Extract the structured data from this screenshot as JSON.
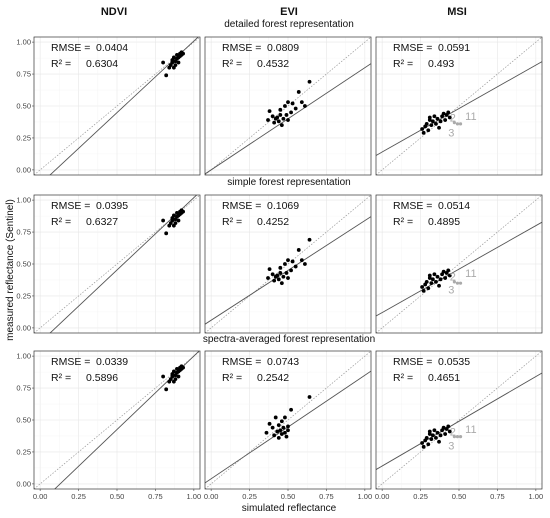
{
  "chart_data": {
    "type": "scatter",
    "columns": [
      "NDVI",
      "EVI",
      "MSI"
    ],
    "rows": [
      "detailed forest representation",
      "simple forest representation",
      "spectra-averaged forest representation"
    ],
    "xlabel": "simulated reflectance",
    "ylabel": "measured reflectance (Sentinel)",
    "xlim": [
      0,
      1
    ],
    "ylim": [
      0,
      1
    ],
    "x_ticks": [
      "0.00",
      "0.25",
      "0.50",
      "0.75",
      "1.00"
    ],
    "y_ticks": [
      "0.00",
      "0.25",
      "0.50",
      "0.75",
      "1.00"
    ],
    "grid": true,
    "reference_line": "1:1 dotted",
    "panels": [
      {
        "row": 0,
        "col": 0,
        "rmse_label": "RMSE =",
        "rmse": "0.0404",
        "r2_label": "R² =",
        "r2": "0.6304",
        "fit": [
          [
            0.1,
            0.0
          ],
          [
            0.93,
            0.93
          ]
        ],
        "points": [
          [
            0.8,
            0.84
          ],
          [
            0.82,
            0.74
          ],
          [
            0.84,
            0.8
          ],
          [
            0.85,
            0.82
          ],
          [
            0.86,
            0.84
          ],
          [
            0.86,
            0.86
          ],
          [
            0.87,
            0.8
          ],
          [
            0.87,
            0.88
          ],
          [
            0.88,
            0.82
          ],
          [
            0.88,
            0.85
          ],
          [
            0.89,
            0.87
          ],
          [
            0.89,
            0.9
          ],
          [
            0.9,
            0.84
          ],
          [
            0.9,
            0.88
          ],
          [
            0.91,
            0.89
          ],
          [
            0.91,
            0.91
          ],
          [
            0.92,
            0.9
          ],
          [
            0.92,
            0.92
          ],
          [
            0.93,
            0.91
          ]
        ]
      },
      {
        "row": 0,
        "col": 1,
        "rmse_label": "RMSE =",
        "rmse": "0.0809",
        "r2_label": "R² =",
        "r2": "0.4532",
        "fit": [
          [
            0.0,
            0.0
          ],
          [
            1.0,
            0.8
          ]
        ],
        "points": [
          [
            0.37,
            0.39
          ],
          [
            0.38,
            0.46
          ],
          [
            0.4,
            0.42
          ],
          [
            0.41,
            0.37
          ],
          [
            0.42,
            0.4
          ],
          [
            0.43,
            0.41
          ],
          [
            0.44,
            0.38
          ],
          [
            0.45,
            0.43
          ],
          [
            0.45,
            0.47
          ],
          [
            0.46,
            0.35
          ],
          [
            0.47,
            0.4
          ],
          [
            0.48,
            0.5
          ],
          [
            0.49,
            0.43
          ],
          [
            0.5,
            0.39
          ],
          [
            0.5,
            0.53
          ],
          [
            0.52,
            0.45
          ],
          [
            0.53,
            0.52
          ],
          [
            0.55,
            0.48
          ],
          [
            0.57,
            0.61
          ],
          [
            0.59,
            0.53
          ],
          [
            0.61,
            0.5
          ],
          [
            0.64,
            0.69
          ]
        ]
      },
      {
        "row": 0,
        "col": 2,
        "rmse_label": "RMSE =",
        "rmse": "0.0591",
        "r2_label": "R² =",
        "r2": "0.493",
        "fit": [
          [
            0.0,
            0.14
          ],
          [
            1.0,
            0.82
          ]
        ],
        "points": [
          [
            0.26,
            0.32
          ],
          [
            0.27,
            0.29
          ],
          [
            0.28,
            0.34
          ],
          [
            0.29,
            0.36
          ],
          [
            0.3,
            0.31
          ],
          [
            0.31,
            0.39
          ],
          [
            0.31,
            0.41
          ],
          [
            0.32,
            0.35
          ],
          [
            0.33,
            0.38
          ],
          [
            0.34,
            0.42
          ],
          [
            0.35,
            0.36
          ],
          [
            0.36,
            0.4
          ],
          [
            0.37,
            0.33
          ],
          [
            0.38,
            0.38
          ],
          [
            0.39,
            0.42
          ],
          [
            0.4,
            0.44
          ],
          [
            0.41,
            0.39
          ],
          [
            0.42,
            0.43
          ],
          [
            0.43,
            0.45
          ],
          [
            0.44,
            0.41
          ]
        ],
        "labels": [
          {
            "text": "2",
            "x": 0.44,
            "y": 0.38
          },
          {
            "text": "11",
            "x": 0.54,
            "y": 0.39
          },
          {
            "text": "3",
            "x": 0.43,
            "y": 0.26
          }
        ],
        "gray_points": [
          [
            0.47,
            0.37
          ],
          [
            0.49,
            0.36
          ],
          [
            0.51,
            0.36
          ]
        ]
      },
      {
        "row": 1,
        "col": 0,
        "rmse_label": "RMSE =",
        "rmse": "0.0395",
        "r2_label": "R² =",
        "r2": "0.6327",
        "fit": [
          [
            0.1,
            0.0
          ],
          [
            0.93,
            0.94
          ]
        ],
        "points": [
          [
            0.8,
            0.84
          ],
          [
            0.82,
            0.74
          ],
          [
            0.84,
            0.8
          ],
          [
            0.85,
            0.82
          ],
          [
            0.86,
            0.84
          ],
          [
            0.86,
            0.86
          ],
          [
            0.87,
            0.8
          ],
          [
            0.87,
            0.88
          ],
          [
            0.88,
            0.82
          ],
          [
            0.88,
            0.85
          ],
          [
            0.89,
            0.87
          ],
          [
            0.89,
            0.9
          ],
          [
            0.9,
            0.84
          ],
          [
            0.9,
            0.88
          ],
          [
            0.91,
            0.89
          ],
          [
            0.91,
            0.91
          ],
          [
            0.92,
            0.9
          ],
          [
            0.92,
            0.92
          ],
          [
            0.93,
            0.91
          ]
        ]
      },
      {
        "row": 1,
        "col": 1,
        "rmse_label": "RMSE =",
        "rmse": "0.1069",
        "r2_label": "R² =",
        "r2": "0.4252",
        "fit": [
          [
            0.0,
            0.06
          ],
          [
            1.0,
            0.84
          ]
        ],
        "points": [
          [
            0.37,
            0.39
          ],
          [
            0.38,
            0.46
          ],
          [
            0.4,
            0.42
          ],
          [
            0.41,
            0.37
          ],
          [
            0.42,
            0.4
          ],
          [
            0.43,
            0.41
          ],
          [
            0.44,
            0.38
          ],
          [
            0.45,
            0.43
          ],
          [
            0.45,
            0.47
          ],
          [
            0.46,
            0.35
          ],
          [
            0.47,
            0.4
          ],
          [
            0.48,
            0.5
          ],
          [
            0.49,
            0.43
          ],
          [
            0.5,
            0.39
          ],
          [
            0.5,
            0.53
          ],
          [
            0.52,
            0.45
          ],
          [
            0.53,
            0.52
          ],
          [
            0.55,
            0.48
          ],
          [
            0.57,
            0.61
          ],
          [
            0.59,
            0.53
          ],
          [
            0.61,
            0.5
          ],
          [
            0.64,
            0.69
          ]
        ]
      },
      {
        "row": 1,
        "col": 2,
        "rmse_label": "RMSE =",
        "rmse": "0.0514",
        "r2_label": "R² =",
        "r2": "0.4895",
        "fit": [
          [
            0.0,
            0.12
          ],
          [
            1.0,
            0.8
          ]
        ],
        "points": [
          [
            0.26,
            0.32
          ],
          [
            0.27,
            0.29
          ],
          [
            0.28,
            0.34
          ],
          [
            0.29,
            0.36
          ],
          [
            0.3,
            0.31
          ],
          [
            0.31,
            0.39
          ],
          [
            0.31,
            0.41
          ],
          [
            0.32,
            0.35
          ],
          [
            0.33,
            0.38
          ],
          [
            0.34,
            0.42
          ],
          [
            0.35,
            0.36
          ],
          [
            0.36,
            0.4
          ],
          [
            0.37,
            0.33
          ],
          [
            0.38,
            0.38
          ],
          [
            0.39,
            0.42
          ],
          [
            0.4,
            0.44
          ],
          [
            0.41,
            0.39
          ],
          [
            0.42,
            0.43
          ],
          [
            0.43,
            0.45
          ],
          [
            0.44,
            0.41
          ]
        ],
        "labels": [
          {
            "text": "2",
            "x": 0.44,
            "y": 0.37
          },
          {
            "text": "11",
            "x": 0.54,
            "y": 0.4
          },
          {
            "text": "3",
            "x": 0.43,
            "y": 0.27
          }
        ],
        "gray_points": [
          [
            0.47,
            0.36
          ],
          [
            0.49,
            0.35
          ],
          [
            0.51,
            0.35
          ]
        ]
      },
      {
        "row": 2,
        "col": 0,
        "rmse_label": "RMSE =",
        "rmse": "0.0339",
        "r2_label": "R² =",
        "r2": "0.5896",
        "fit": [
          [
            0.13,
            0.0
          ],
          [
            0.93,
            0.92
          ]
        ],
        "points": [
          [
            0.8,
            0.84
          ],
          [
            0.82,
            0.74
          ],
          [
            0.84,
            0.8
          ],
          [
            0.85,
            0.82
          ],
          [
            0.86,
            0.84
          ],
          [
            0.86,
            0.86
          ],
          [
            0.87,
            0.8
          ],
          [
            0.87,
            0.88
          ],
          [
            0.88,
            0.82
          ],
          [
            0.88,
            0.85
          ],
          [
            0.89,
            0.87
          ],
          [
            0.89,
            0.9
          ],
          [
            0.9,
            0.84
          ],
          [
            0.9,
            0.88
          ],
          [
            0.91,
            0.89
          ],
          [
            0.91,
            0.91
          ],
          [
            0.92,
            0.9
          ],
          [
            0.92,
            0.92
          ],
          [
            0.93,
            0.91
          ]
        ]
      },
      {
        "row": 2,
        "col": 1,
        "rmse_label": "RMSE =",
        "rmse": "0.0743",
        "r2_label": "R² =",
        "r2": "0.2542",
        "fit": [
          [
            0.0,
            0.04
          ],
          [
            1.0,
            0.85
          ]
        ],
        "points": [
          [
            0.36,
            0.4
          ],
          [
            0.38,
            0.47
          ],
          [
            0.4,
            0.44
          ],
          [
            0.41,
            0.38
          ],
          [
            0.42,
            0.52
          ],
          [
            0.43,
            0.41
          ],
          [
            0.44,
            0.36
          ],
          [
            0.44,
            0.46
          ],
          [
            0.45,
            0.42
          ],
          [
            0.46,
            0.39
          ],
          [
            0.46,
            0.49
          ],
          [
            0.47,
            0.44
          ],
          [
            0.48,
            0.4
          ],
          [
            0.48,
            0.52
          ],
          [
            0.49,
            0.37
          ],
          [
            0.5,
            0.42
          ],
          [
            0.5,
            0.45
          ],
          [
            0.52,
            0.58
          ],
          [
            0.64,
            0.68
          ]
        ]
      },
      {
        "row": 2,
        "col": 2,
        "rmse_label": "RMSE =",
        "rmse": "0.0535",
        "r2_label": "R² =",
        "r2": "0.4651",
        "fit": [
          [
            0.0,
            0.14
          ],
          [
            1.0,
            0.84
          ]
        ],
        "points": [
          [
            0.26,
            0.32
          ],
          [
            0.27,
            0.29
          ],
          [
            0.28,
            0.34
          ],
          [
            0.29,
            0.36
          ],
          [
            0.3,
            0.31
          ],
          [
            0.31,
            0.39
          ],
          [
            0.31,
            0.41
          ],
          [
            0.32,
            0.35
          ],
          [
            0.33,
            0.38
          ],
          [
            0.34,
            0.42
          ],
          [
            0.35,
            0.36
          ],
          [
            0.36,
            0.4
          ],
          [
            0.37,
            0.33
          ],
          [
            0.38,
            0.38
          ],
          [
            0.39,
            0.42
          ],
          [
            0.4,
            0.44
          ],
          [
            0.41,
            0.39
          ],
          [
            0.42,
            0.43
          ],
          [
            0.43,
            0.45
          ],
          [
            0.44,
            0.41
          ]
        ],
        "labels": [
          {
            "text": "2",
            "x": 0.44,
            "y": 0.38
          },
          {
            "text": "11",
            "x": 0.54,
            "y": 0.4
          },
          {
            "text": "3",
            "x": 0.43,
            "y": 0.27
          }
        ],
        "gray_points": [
          [
            0.47,
            0.37
          ],
          [
            0.49,
            0.37
          ],
          [
            0.51,
            0.37
          ]
        ]
      }
    ]
  }
}
